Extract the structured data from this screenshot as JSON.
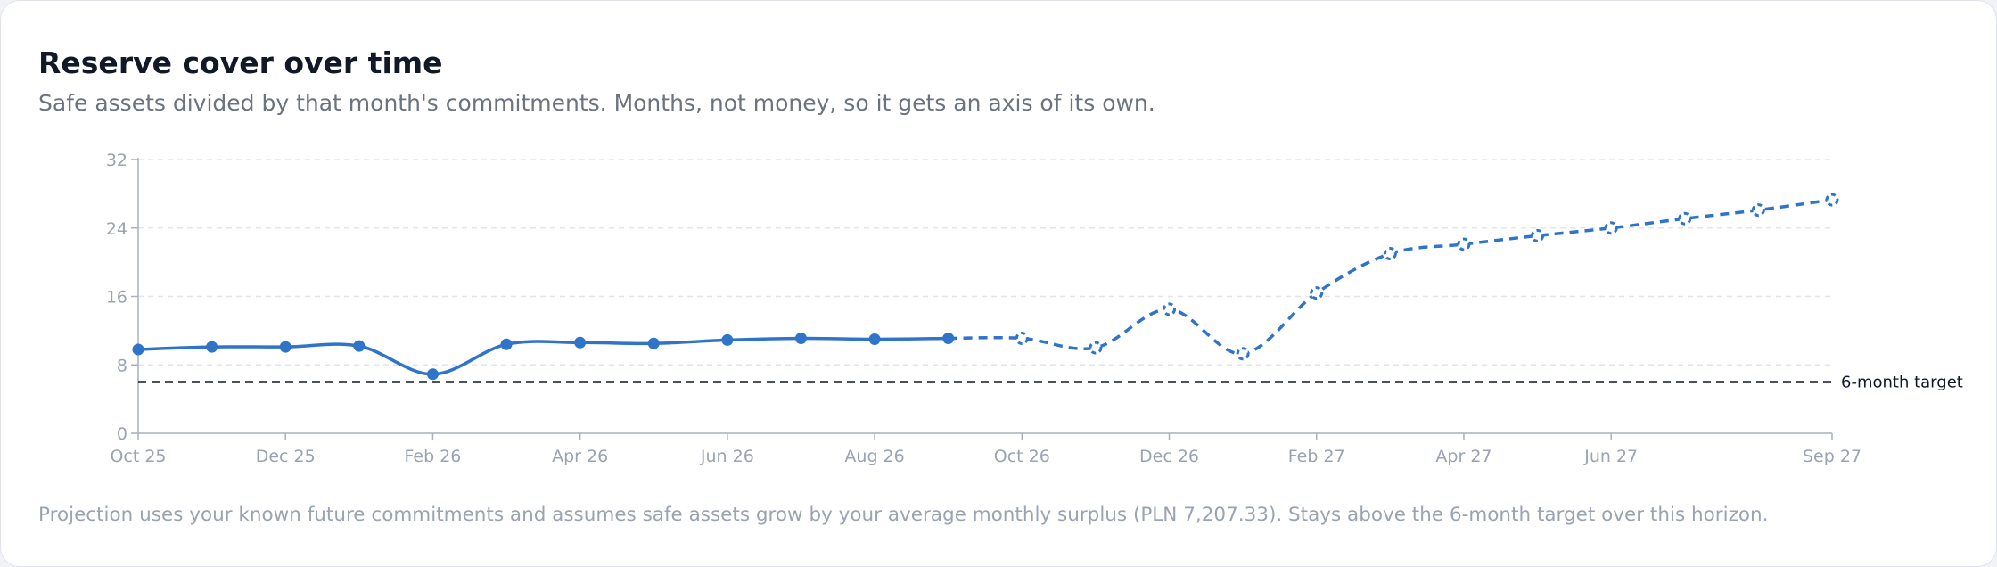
{
  "header": {
    "title": "Reserve cover over time",
    "subtitle": "Safe assets divided by that month's commitments. Months, not money, so it gets an axis of its own."
  },
  "footer": {
    "note": "Projection uses your known future commitments and assumes safe assets grow by your average monthly surplus (PLN 7,207.33). Stays above the 6-month target over this horizon."
  },
  "colors": {
    "line": "#2f74c8",
    "target": "#111827",
    "grid": "#e2e6ec",
    "axis": "#a9b1bd"
  },
  "chart_data": {
    "type": "line",
    "title": "Reserve cover over time",
    "ylim": [
      0,
      32
    ],
    "yticks": [
      0,
      8,
      16,
      24,
      32
    ],
    "grid": true,
    "x": [
      "Oct 25",
      "Nov 25",
      "Dec 25",
      "Jan 26",
      "Feb 26",
      "Mar 26",
      "Apr 26",
      "May 26",
      "Jun 26",
      "Jul 26",
      "Aug 26",
      "Sep 26",
      "Oct 26",
      "Nov 26",
      "Dec 26",
      "Jan 27",
      "Feb 27",
      "Mar 27",
      "Apr 27",
      "May 27",
      "Jun 27",
      "Jul 27",
      "Aug 27",
      "Sep 27"
    ],
    "xtick_labels": [
      "Oct 25",
      "Dec 25",
      "Feb 26",
      "Apr 26",
      "Jun 26",
      "Aug 26",
      "Oct 26",
      "Dec 26",
      "Feb 27",
      "Apr 27",
      "Jun 27",
      "Sep 27"
    ],
    "series": [
      {
        "segment": "actual",
        "style": "solid",
        "x": [
          "Oct 25",
          "Nov 25",
          "Dec 25",
          "Jan 26",
          "Feb 26",
          "Mar 26",
          "Apr 26",
          "May 26",
          "Jun 26",
          "Jul 26",
          "Aug 26",
          "Sep 26"
        ],
        "values": [
          9.8,
          10.1,
          10.1,
          10.2,
          6.9,
          10.4,
          10.6,
          10.5,
          10.9,
          11.1,
          11.0,
          11.1
        ]
      },
      {
        "segment": "projection",
        "style": "dashed",
        "x": [
          "Sep 26",
          "Oct 26",
          "Nov 26",
          "Dec 26",
          "Jan 27",
          "Feb 27",
          "Mar 27",
          "Apr 27",
          "May 27",
          "Jun 27",
          "Jul 27",
          "Aug 27",
          "Sep 27"
        ],
        "values": [
          11.1,
          11.1,
          10.0,
          14.5,
          9.3,
          16.4,
          21.0,
          22.1,
          23.1,
          24.0,
          25.1,
          26.1,
          27.3
        ]
      }
    ],
    "reference_line": {
      "y": 6,
      "label": "6-month target",
      "style": "dashed"
    }
  }
}
